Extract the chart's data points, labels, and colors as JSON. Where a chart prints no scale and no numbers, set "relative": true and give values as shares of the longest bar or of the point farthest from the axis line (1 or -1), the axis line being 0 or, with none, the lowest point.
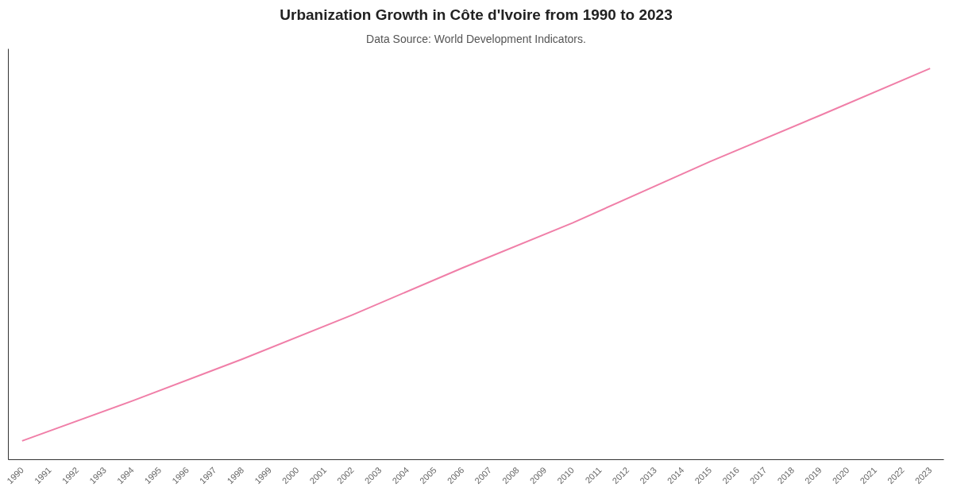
{
  "chart_data": {
    "type": "line",
    "title": "Urbanization Growth in Côte d'Ivoire from 1990 to 2023",
    "subtitle": "Data Source: World Development Indicators.",
    "relative": true,
    "x": [
      1990,
      1994,
      1998,
      2002,
      2006,
      2010,
      2015,
      2019,
      2023
    ],
    "series": [
      {
        "color": "#f07fa8",
        "values": [
          0.048,
          0.15,
          0.257,
          0.37,
          0.49,
          0.605,
          0.762,
          0.88,
          1.0
        ]
      }
    ],
    "xlim": [
      1989.5,
      2023.5
    ],
    "xticks": [
      1990,
      1991,
      1992,
      1993,
      1994,
      1995,
      1996,
      1997,
      1998,
      1999,
      2000,
      2001,
      2002,
      2003,
      2004,
      2005,
      2006,
      2007,
      2008,
      2009,
      2010,
      2011,
      2012,
      2013,
      2014,
      2015,
      2016,
      2017,
      2018,
      2019,
      2020,
      2021,
      2022,
      2023
    ],
    "grid": false,
    "marker": "none",
    "line_style": "solid"
  }
}
